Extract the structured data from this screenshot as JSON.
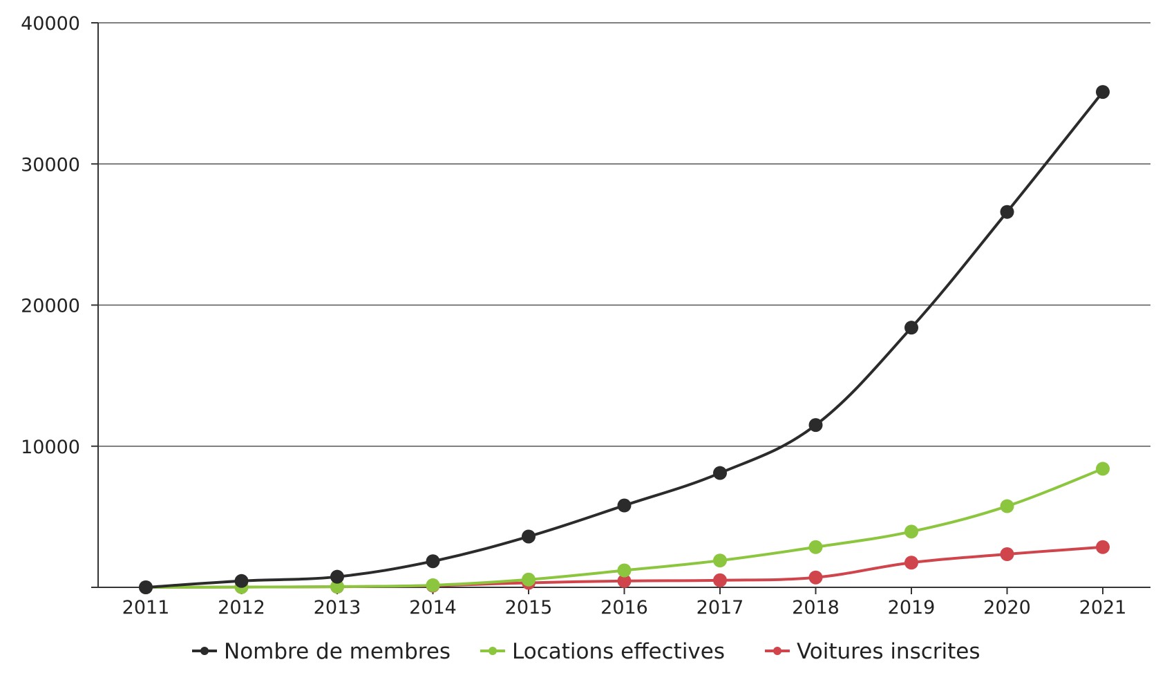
{
  "chart_data": {
    "type": "line",
    "title": "",
    "xlabel": "",
    "ylabel": "",
    "x": [
      2011,
      2012,
      2013,
      2014,
      2015,
      2016,
      2017,
      2018,
      2019,
      2020,
      2021
    ],
    "ylim": [
      0,
      40000
    ],
    "yticks": [
      10000,
      20000,
      30000,
      40000
    ],
    "grid": true,
    "legend_position": "bottom",
    "series": [
      {
        "name": "Nombre de membres",
        "color": "#2b2b2b",
        "values": [
          0,
          450,
          750,
          1850,
          3600,
          5800,
          8100,
          11500,
          18400,
          26600,
          35100
        ]
      },
      {
        "name": "Locations effectives",
        "color": "#8cc63f",
        "values": [
          0,
          20,
          50,
          150,
          550,
          1200,
          1900,
          2850,
          3950,
          5750,
          8400
        ]
      },
      {
        "name": "Voitures inscrites",
        "color": "#d0454c",
        "values": [
          0,
          20,
          40,
          120,
          320,
          450,
          500,
          700,
          1750,
          2350,
          2850
        ]
      }
    ]
  }
}
